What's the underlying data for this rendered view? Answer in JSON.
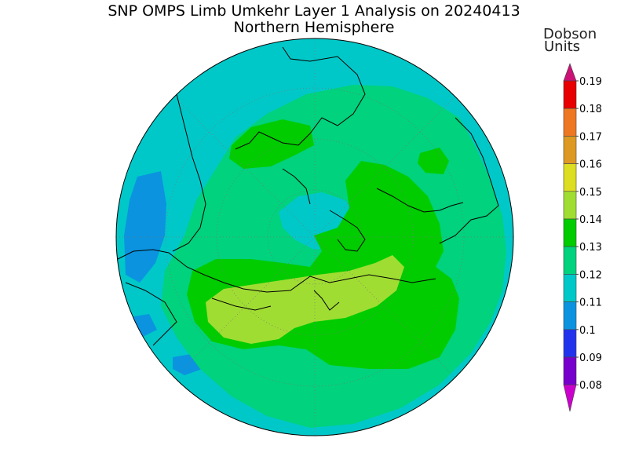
{
  "title": "SNP OMPS Limb Umkehr Layer 1 Analysis on 20240413",
  "subtitle": "Northern Hemisphere",
  "legend": {
    "title_line1": "Dobson",
    "title_line2": "Units",
    "levels": [
      {
        "label": "0.19",
        "color": "#cc1177"
      },
      {
        "label": "0.18",
        "color": "#e80000"
      },
      {
        "label": "0.17",
        "color": "#ee7722"
      },
      {
        "label": "0.16",
        "color": "#dd9922"
      },
      {
        "label": "0.15",
        "color": "#dddd22"
      },
      {
        "label": "0.14",
        "color": "#a0dd33"
      },
      {
        "label": "0.13",
        "color": "#00cc00"
      },
      {
        "label": "0.12",
        "color": "#00d27d"
      },
      {
        "label": "0.11",
        "color": "#00c8c8"
      },
      {
        "label": "0.1",
        "color": "#0b93e0"
      },
      {
        "label": "0.09",
        "color": "#2233ee"
      },
      {
        "label": "0.08",
        "color": "#7700cc"
      }
    ],
    "underflow_color": "#cc00cc"
  },
  "map": {
    "projection": "north polar stereographic",
    "background_color": "#00c8c8"
  }
}
